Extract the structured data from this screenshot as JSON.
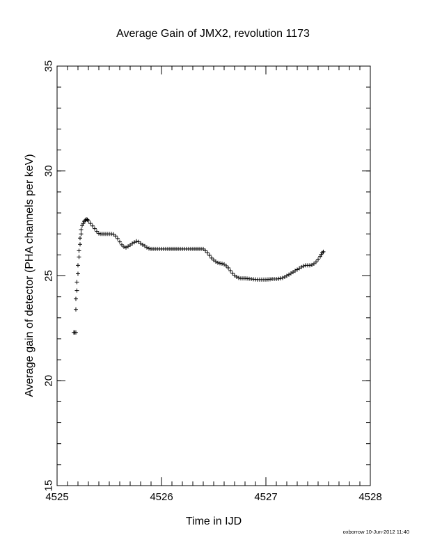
{
  "chart_data": {
    "type": "scatter",
    "marker": "plus",
    "title": "Average Gain of JMX2, revolution 1173",
    "xlabel": "Time in IJD",
    "ylabel": "Average gain of detector (PHA channels per keV)",
    "xlim": [
      4525,
      4528
    ],
    "ylim": [
      15,
      35
    ],
    "xticks": [
      4525,
      4526,
      4527,
      4528
    ],
    "yticks": [
      15,
      20,
      25,
      30,
      35
    ],
    "x_minor_step": 0.1,
    "y_minor_step": 1,
    "grid": false,
    "legend": "none",
    "points": [
      [
        4525.16,
        22.3
      ],
      [
        4525.17,
        22.3
      ],
      [
        4525.18,
        22.3
      ],
      [
        4525.18,
        23.4
      ],
      [
        4525.18,
        23.9
      ],
      [
        4525.19,
        24.3
      ],
      [
        4525.19,
        24.7
      ],
      [
        4525.2,
        25.1
      ],
      [
        4525.2,
        25.5
      ],
      [
        4525.21,
        25.9
      ],
      [
        4525.21,
        26.2
      ],
      [
        4525.22,
        26.5
      ],
      [
        4525.22,
        26.8
      ],
      [
        4525.23,
        27.0
      ],
      [
        4525.23,
        27.2
      ],
      [
        4525.24,
        27.4
      ],
      [
        4525.25,
        27.5
      ],
      [
        4525.26,
        27.6
      ],
      [
        4525.27,
        27.65
      ],
      [
        4525.28,
        27.7
      ],
      [
        4525.29,
        27.68
      ],
      [
        4525.3,
        27.62
      ],
      [
        4525.32,
        27.5
      ],
      [
        4525.34,
        27.38
      ],
      [
        4525.36,
        27.25
      ],
      [
        4525.38,
        27.12
      ],
      [
        4525.4,
        27.02
      ],
      [
        4525.42,
        27.0
      ],
      [
        4525.44,
        27.0
      ],
      [
        4525.46,
        27.0
      ],
      [
        4525.48,
        27.0
      ],
      [
        4525.5,
        27.0
      ],
      [
        4525.52,
        27.0
      ],
      [
        4525.54,
        26.98
      ],
      [
        4525.56,
        26.9
      ],
      [
        4525.58,
        26.78
      ],
      [
        4525.6,
        26.62
      ],
      [
        4525.62,
        26.48
      ],
      [
        4525.64,
        26.38
      ],
      [
        4525.66,
        26.35
      ],
      [
        4525.68,
        26.4
      ],
      [
        4525.7,
        26.47
      ],
      [
        4525.72,
        26.54
      ],
      [
        4525.74,
        26.6
      ],
      [
        4525.76,
        26.65
      ],
      [
        4525.78,
        26.62
      ],
      [
        4525.8,
        26.55
      ],
      [
        4525.82,
        26.48
      ],
      [
        4525.84,
        26.42
      ],
      [
        4525.86,
        26.35
      ],
      [
        4525.88,
        26.3
      ],
      [
        4525.9,
        26.28
      ],
      [
        4525.92,
        26.28
      ],
      [
        4525.94,
        26.28
      ],
      [
        4525.96,
        26.28
      ],
      [
        4525.98,
        26.28
      ],
      [
        4526.0,
        26.28
      ],
      [
        4526.02,
        26.28
      ],
      [
        4526.04,
        26.28
      ],
      [
        4526.06,
        26.28
      ],
      [
        4526.08,
        26.28
      ],
      [
        4526.1,
        26.28
      ],
      [
        4526.12,
        26.28
      ],
      [
        4526.14,
        26.28
      ],
      [
        4526.16,
        26.28
      ],
      [
        4526.18,
        26.28
      ],
      [
        4526.2,
        26.28
      ],
      [
        4526.22,
        26.28
      ],
      [
        4526.24,
        26.28
      ],
      [
        4526.26,
        26.28
      ],
      [
        4526.28,
        26.28
      ],
      [
        4526.3,
        26.28
      ],
      [
        4526.32,
        26.28
      ],
      [
        4526.34,
        26.28
      ],
      [
        4526.36,
        26.28
      ],
      [
        4526.38,
        26.28
      ],
      [
        4526.4,
        26.28
      ],
      [
        4526.42,
        26.2
      ],
      [
        4526.44,
        26.1
      ],
      [
        4526.46,
        25.98
      ],
      [
        4526.48,
        25.85
      ],
      [
        4526.5,
        25.75
      ],
      [
        4526.52,
        25.68
      ],
      [
        4526.54,
        25.62
      ],
      [
        4526.56,
        25.6
      ],
      [
        4526.58,
        25.58
      ],
      [
        4526.6,
        25.55
      ],
      [
        4526.62,
        25.48
      ],
      [
        4526.64,
        25.38
      ],
      [
        4526.66,
        25.25
      ],
      [
        4526.68,
        25.12
      ],
      [
        4526.7,
        25.02
      ],
      [
        4526.72,
        24.95
      ],
      [
        4526.74,
        24.9
      ],
      [
        4526.76,
        24.88
      ],
      [
        4526.78,
        24.88
      ],
      [
        4526.8,
        24.88
      ],
      [
        4526.82,
        24.87
      ],
      [
        4526.84,
        24.86
      ],
      [
        4526.86,
        24.85
      ],
      [
        4526.88,
        24.84
      ],
      [
        4526.9,
        24.83
      ],
      [
        4526.92,
        24.82
      ],
      [
        4526.94,
        24.82
      ],
      [
        4526.96,
        24.82
      ],
      [
        4526.98,
        24.82
      ],
      [
        4527.0,
        24.82
      ],
      [
        4527.02,
        24.83
      ],
      [
        4527.04,
        24.84
      ],
      [
        4527.06,
        24.85
      ],
      [
        4527.08,
        24.85
      ],
      [
        4527.1,
        24.85
      ],
      [
        4527.12,
        24.86
      ],
      [
        4527.14,
        24.88
      ],
      [
        4527.16,
        24.9
      ],
      [
        4527.18,
        24.95
      ],
      [
        4527.2,
        25.0
      ],
      [
        4527.22,
        25.06
      ],
      [
        4527.24,
        25.12
      ],
      [
        4527.26,
        25.18
      ],
      [
        4527.28,
        25.24
      ],
      [
        4527.3,
        25.3
      ],
      [
        4527.32,
        25.36
      ],
      [
        4527.34,
        25.42
      ],
      [
        4527.36,
        25.47
      ],
      [
        4527.38,
        25.5
      ],
      [
        4527.4,
        25.5
      ],
      [
        4527.42,
        25.5
      ],
      [
        4527.44,
        25.52
      ],
      [
        4527.46,
        25.58
      ],
      [
        4527.48,
        25.66
      ],
      [
        4527.5,
        25.78
      ],
      [
        4527.52,
        25.92
      ],
      [
        4527.53,
        26.02
      ],
      [
        4527.54,
        26.1
      ],
      [
        4527.55,
        26.15
      ]
    ]
  },
  "footer": "oxborrow 10-Jun-2012 11:40"
}
